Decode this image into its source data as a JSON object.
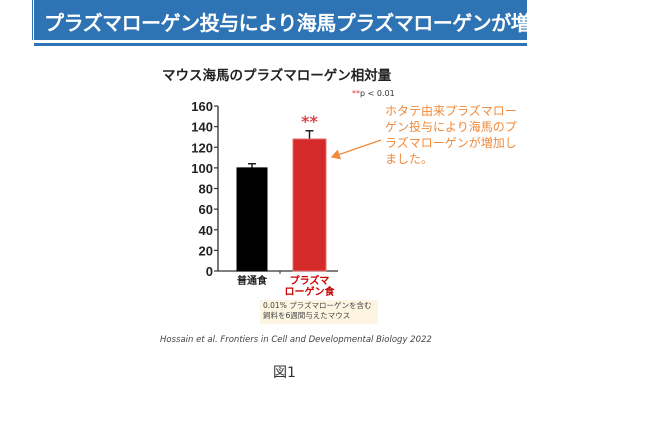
{
  "banner": {
    "title": "プラズマローゲン投与により海馬プラズマローゲンが増加"
  },
  "chart_data": {
    "type": "bar",
    "title": "マウス海馬のプラズマローゲン相対量",
    "categories": [
      "普通食",
      "プラズマローゲン食"
    ],
    "category_lines": [
      [
        "普通食"
      ],
      [
        "プラズマ",
        "ローゲン食"
      ]
    ],
    "values": [
      100,
      128
    ],
    "errors": [
      4,
      8
    ],
    "colors": [
      "#000000",
      "#d42a2a"
    ],
    "label_colors": [
      "#222222",
      "#cc0000"
    ],
    "ylim": [
      0,
      160
    ],
    "yticks": [
      0,
      20,
      40,
      60,
      80,
      100,
      120,
      140,
      160
    ],
    "significance": "**",
    "significance_note": {
      "stars": "**",
      "text": "p < 0.01"
    }
  },
  "annotation": "ホタテ由来プラズマローゲン投与により海馬のプラズマローゲンが増加しました。",
  "note": "0.01% プラズマローゲンを含む飼料を6週間与えたマウス",
  "citation": "Hossain et al. Frontiers in Cell and Developmental Biology  2022",
  "figure_label": "図1"
}
